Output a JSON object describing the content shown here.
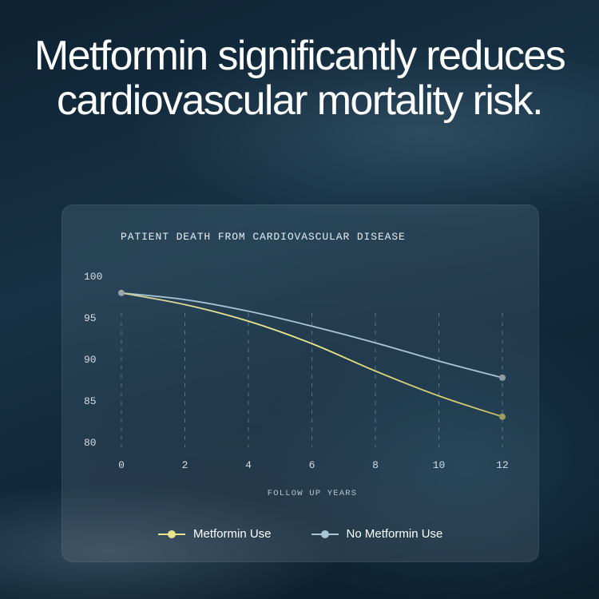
{
  "headline": "Metformin significantly reduces cardiovascular mortality risk.",
  "colors": {
    "metformin": "#e8e48a",
    "no_metformin": "#a9c6d8",
    "start_point": "#9aa6ae"
  },
  "chart_data": {
    "type": "line",
    "title": "PATIENT DEATH FROM CARDIOVASCULAR DISEASE",
    "xlabel": "FOLLOW UP YEARS",
    "ylabel": "",
    "x": [
      0,
      2,
      4,
      6,
      8,
      10,
      12
    ],
    "xticks": [
      "0",
      "2",
      "4",
      "6",
      "8",
      "10",
      "12"
    ],
    "yticks": [
      "100",
      "95",
      "90",
      "85",
      "80"
    ],
    "xlim": [
      0,
      12
    ],
    "ylim": [
      80,
      100
    ],
    "grid": "vertical dashed",
    "legend_position": "bottom",
    "series": [
      {
        "name": "Metformin Use",
        "values": [
          98.0,
          96.6,
          94.6,
          91.9,
          88.6,
          85.6,
          83.1
        ]
      },
      {
        "name": "No Metformin Use",
        "values": [
          98.0,
          97.2,
          95.8,
          94.0,
          92.0,
          89.8,
          87.8
        ]
      }
    ]
  }
}
